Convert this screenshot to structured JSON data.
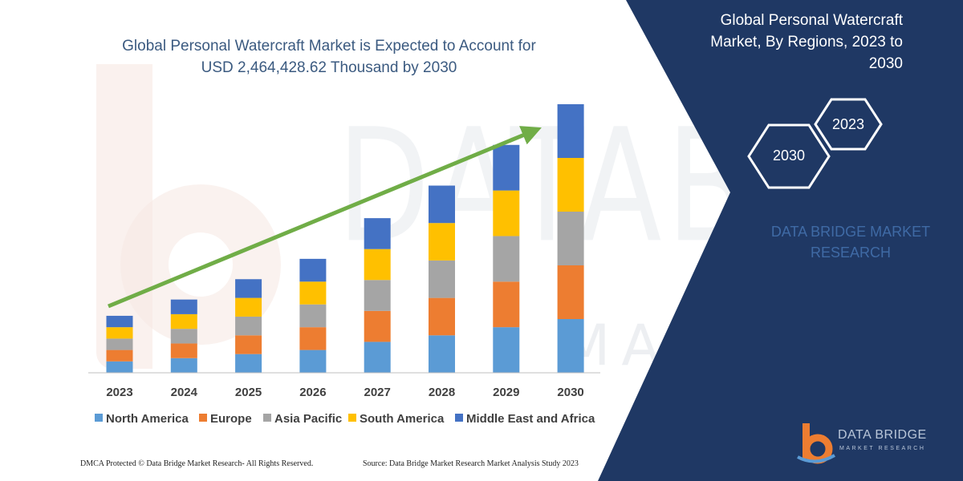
{
  "header": {
    "title_line1": "Global Personal Watercraft Market is Expected to Account for",
    "title_line2": "USD 2,464,428.62  Thousand by 2030"
  },
  "side": {
    "title_line1": "Global Personal Watercraft",
    "title_line2": "Market, By Regions, 2023 to",
    "title_line3": "2030",
    "hex_start": "2023",
    "hex_end": "2030",
    "brand_line1": "DATA BRIDGE MARKET",
    "brand_line2": "RESEARCH"
  },
  "footer": {
    "left": "DMCA Protected © Data Bridge Market Research- All Rights Reserved.",
    "right": "Source: Data Bridge Market Research Market Analysis Study 2023"
  },
  "logo": {
    "name": "DATA BRIDGE",
    "tagline": "MARKET RESEARCH"
  },
  "watermark": {
    "line1": "DATABRIDGE",
    "line2": "MARKET RESEARCH"
  },
  "colors": {
    "navy_panel": "#1f3864",
    "north_america": "#5b9bd5",
    "europe": "#ed7d31",
    "asia_pacific": "#a5a5a5",
    "south_america": "#ffc000",
    "middle_east_africa": "#4472c4",
    "trend_arrow": "#70ad47"
  },
  "chart_data": {
    "type": "bar",
    "stacked": true,
    "categories": [
      "2023",
      "2024",
      "2025",
      "2026",
      "2027",
      "2028",
      "2029",
      "2030"
    ],
    "series": [
      {
        "name": "North America",
        "color": "#5b9bd5",
        "values": [
          14,
          18,
          23,
          28,
          38,
          46,
          56,
          66
        ]
      },
      {
        "name": "Europe",
        "color": "#ed7d31",
        "values": [
          14,
          18,
          23,
          28,
          38,
          46,
          56,
          66
        ]
      },
      {
        "name": "Asia Pacific",
        "color": "#a5a5a5",
        "values": [
          14,
          18,
          23,
          28,
          38,
          46,
          56,
          66
        ]
      },
      {
        "name": "South America",
        "color": "#ffc000",
        "values": [
          14,
          18,
          23,
          28,
          38,
          46,
          56,
          66
        ]
      },
      {
        "name": "Middle East and Africa",
        "color": "#4472c4",
        "values": [
          14,
          18,
          23,
          28,
          38,
          46,
          56,
          66
        ]
      }
    ],
    "ylim": [
      0,
      330
    ],
    "axis_values_shown": false,
    "grid": false,
    "legend_position": "bottom",
    "trend_arrow": true
  }
}
